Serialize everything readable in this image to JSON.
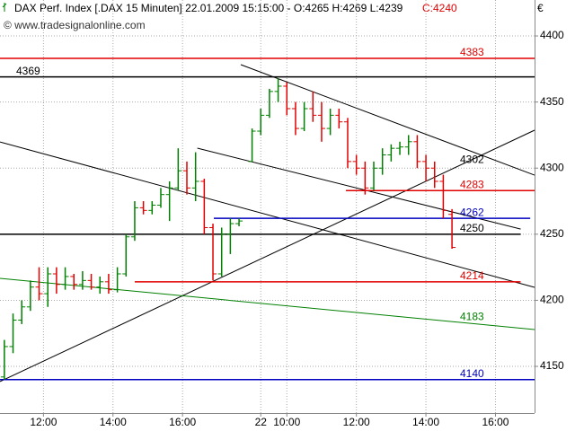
{
  "chart_data": {
    "type": "ohlc",
    "header": "DAX Perf. Index [.DAX  15 Minuten] 22.01.2009 15:15:00 - O:4265 H:4269 L:4239",
    "header_close": "C:4240",
    "watermark": "© www.tradesignalonline.com",
    "currency": "€",
    "up_color": "#008000",
    "down_color": "#e00000",
    "ylim": [
      4114.7,
      4427.2
    ],
    "yticks": [
      4150,
      4200,
      4250,
      4300,
      4350,
      4400
    ],
    "xlim": [
      0,
      61.5
    ],
    "xticks": [
      {
        "value": 5,
        "label": "12:00"
      },
      {
        "value": 13,
        "label": "14:00"
      },
      {
        "value": 21,
        "label": "16:00"
      },
      {
        "value": 30,
        "label": "22"
      },
      {
        "value": 33,
        "label": "10:00"
      },
      {
        "value": 41,
        "label": "12:00"
      },
      {
        "value": 49,
        "label": "14:00"
      },
      {
        "value": 57,
        "label": "16:00"
      }
    ],
    "grid": true,
    "x": [
      0.5,
      1.5,
      2.5,
      3.5,
      4.5,
      5.5,
      6.5,
      7.5,
      8.5,
      9.5,
      10.5,
      11.5,
      12.5,
      13.5,
      14.5,
      15.5,
      16.5,
      17.5,
      18.5,
      19.5,
      20.5,
      21.5,
      22.5,
      23.5,
      24.5,
      25.5,
      26.5,
      27.5,
      29,
      30,
      31,
      32,
      33,
      34,
      35,
      36,
      37,
      38,
      39,
      40,
      41,
      42,
      43,
      44,
      45,
      46,
      47,
      48,
      49,
      50,
      51,
      52
    ],
    "open": [
      4142,
      4165,
      4185,
      4195,
      4210,
      4205,
      4220,
      4212,
      4218,
      4212,
      4215,
      4210,
      4214,
      4208,
      4220,
      4248,
      4270,
      4268,
      4272,
      4280,
      4285,
      4298,
      4285,
      4290,
      4255,
      4220,
      4250,
      4258,
      4305,
      4328,
      4340,
      4358,
      4362,
      4345,
      4330,
      4345,
      4340,
      4330,
      4340,
      4335,
      4305,
      4300,
      4285,
      4300,
      4310,
      4315,
      4316,
      4320,
      4305,
      4300,
      4290,
      4265
    ],
    "high": [
      4170,
      4190,
      4200,
      4215,
      4225,
      4225,
      4225,
      4225,
      4220,
      4222,
      4220,
      4218,
      4220,
      4225,
      4250,
      4275,
      4275,
      4275,
      4285,
      4290,
      4315,
      4305,
      4312,
      4292,
      4258,
      4255,
      4262,
      4262,
      4330,
      4345,
      4360,
      4368,
      4365,
      4350,
      4350,
      4358,
      4350,
      4345,
      4345,
      4338,
      4310,
      4305,
      4305,
      4315,
      4318,
      4320,
      4325,
      4325,
      4310,
      4305,
      4295,
      4269
    ],
    "low": [
      4140,
      4160,
      4182,
      4192,
      4200,
      4195,
      4205,
      4208,
      4208,
      4208,
      4208,
      4205,
      4205,
      4206,
      4218,
      4245,
      4265,
      4265,
      4270,
      4260,
      4283,
      4280,
      4275,
      4250,
      4215,
      4218,
      4235,
      4256,
      4305,
      4325,
      4338,
      4350,
      4340,
      4325,
      4328,
      4335,
      4320,
      4325,
      4330,
      4300,
      4295,
      4280,
      4283,
      4295,
      4305,
      4310,
      4310,
      4300,
      4290,
      4285,
      4262,
      4239
    ],
    "close": [
      4165,
      4185,
      4195,
      4210,
      4205,
      4220,
      4212,
      4218,
      4212,
      4215,
      4210,
      4214,
      4208,
      4220,
      4248,
      4270,
      4268,
      4272,
      4280,
      4285,
      4298,
      4285,
      4290,
      4255,
      4220,
      4250,
      4258,
      4260,
      4328,
      4340,
      4358,
      4362,
      4345,
      4330,
      4345,
      4340,
      4330,
      4340,
      4335,
      4305,
      4300,
      4285,
      4300,
      4310,
      4315,
      4316,
      4320,
      4305,
      4300,
      4290,
      4268,
      4240
    ],
    "levels": [
      {
        "value": 4383,
        "color": "#e00000",
        "x": [
          0,
          61.5
        ]
      },
      {
        "value": 4369,
        "color": "#000000",
        "x": [
          0,
          61.5
        ],
        "label_side": "left"
      },
      {
        "value": 4302,
        "color": "#000000"
      },
      {
        "value": 4283,
        "color": "#e00000",
        "x": [
          39.8,
          61.5
        ]
      },
      {
        "value": 4262,
        "color": "#0000c0",
        "x": [
          24.6,
          61
        ]
      },
      {
        "value": 4250,
        "color": "#000000",
        "x": [
          0,
          59.9
        ]
      },
      {
        "value": 4214,
        "color": "#e00000",
        "x": [
          15.5,
          59.9
        ]
      },
      {
        "value": 4183,
        "color": "#008000"
      },
      {
        "value": 4140,
        "color": "#0000c0",
        "x": [
          0,
          61.5
        ]
      }
    ],
    "trendlines": [
      {
        "color": "#000000",
        "x": [
          27.7,
          61.5
        ],
        "y": [
          4378.3,
          4294.7
        ]
      },
      {
        "color": "#000000",
        "x": [
          22.7,
          59.9
        ],
        "y": [
          4315.1,
          4253.9
        ]
      },
      {
        "color": "#000000",
        "x": [
          0,
          61.5
        ],
        "y": [
          4319.8,
          4209.8
        ]
      },
      {
        "color": "#000000",
        "x": [
          0,
          61.5
        ],
        "y": [
          4138.5,
          4328.7
        ]
      },
      {
        "color": "#008000",
        "x": [
          0,
          61.5
        ],
        "y": [
          4216.6,
          4177.9
        ]
      }
    ]
  }
}
